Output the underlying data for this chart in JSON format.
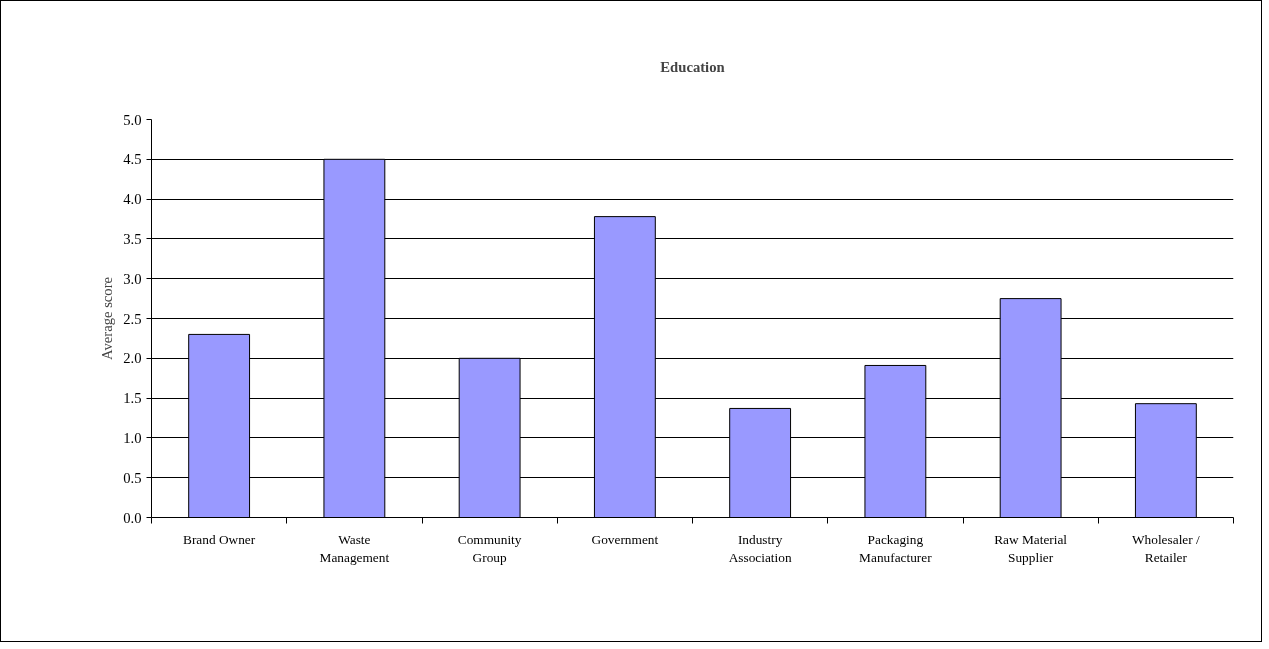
{
  "chart_data": {
    "type": "bar",
    "title": "Education",
    "ylabel": "Average score",
    "categories": [
      "Brand Owner",
      "Waste Management",
      "Community Group",
      "Government",
      "Industry Association",
      "Packaging Manufacturer",
      "Raw Material Supplier",
      "Wholesaler / Retailer"
    ],
    "values": [
      2.3,
      4.5,
      2.0,
      3.78,
      1.37,
      1.91,
      2.75,
      1.43
    ],
    "color": "#9999ff",
    "ylim": [
      0,
      5
    ],
    "yticks": [
      {
        "value": 0,
        "label": "0.0"
      },
      {
        "value": 0.5,
        "label": "0.5"
      },
      {
        "value": 1,
        "label": "1.0"
      },
      {
        "value": 1.5,
        "label": "1.5"
      },
      {
        "value": 2,
        "label": "2.0"
      },
      {
        "value": 2.5,
        "label": "2.5"
      },
      {
        "value": 3,
        "label": "3.0"
      },
      {
        "value": 3.5,
        "label": "3.5"
      },
      {
        "value": 4,
        "label": "4.0"
      },
      {
        "value": 4.5,
        "label": "4.5"
      },
      {
        "value": 5,
        "label": "5.0"
      }
    ],
    "grid": "y"
  }
}
